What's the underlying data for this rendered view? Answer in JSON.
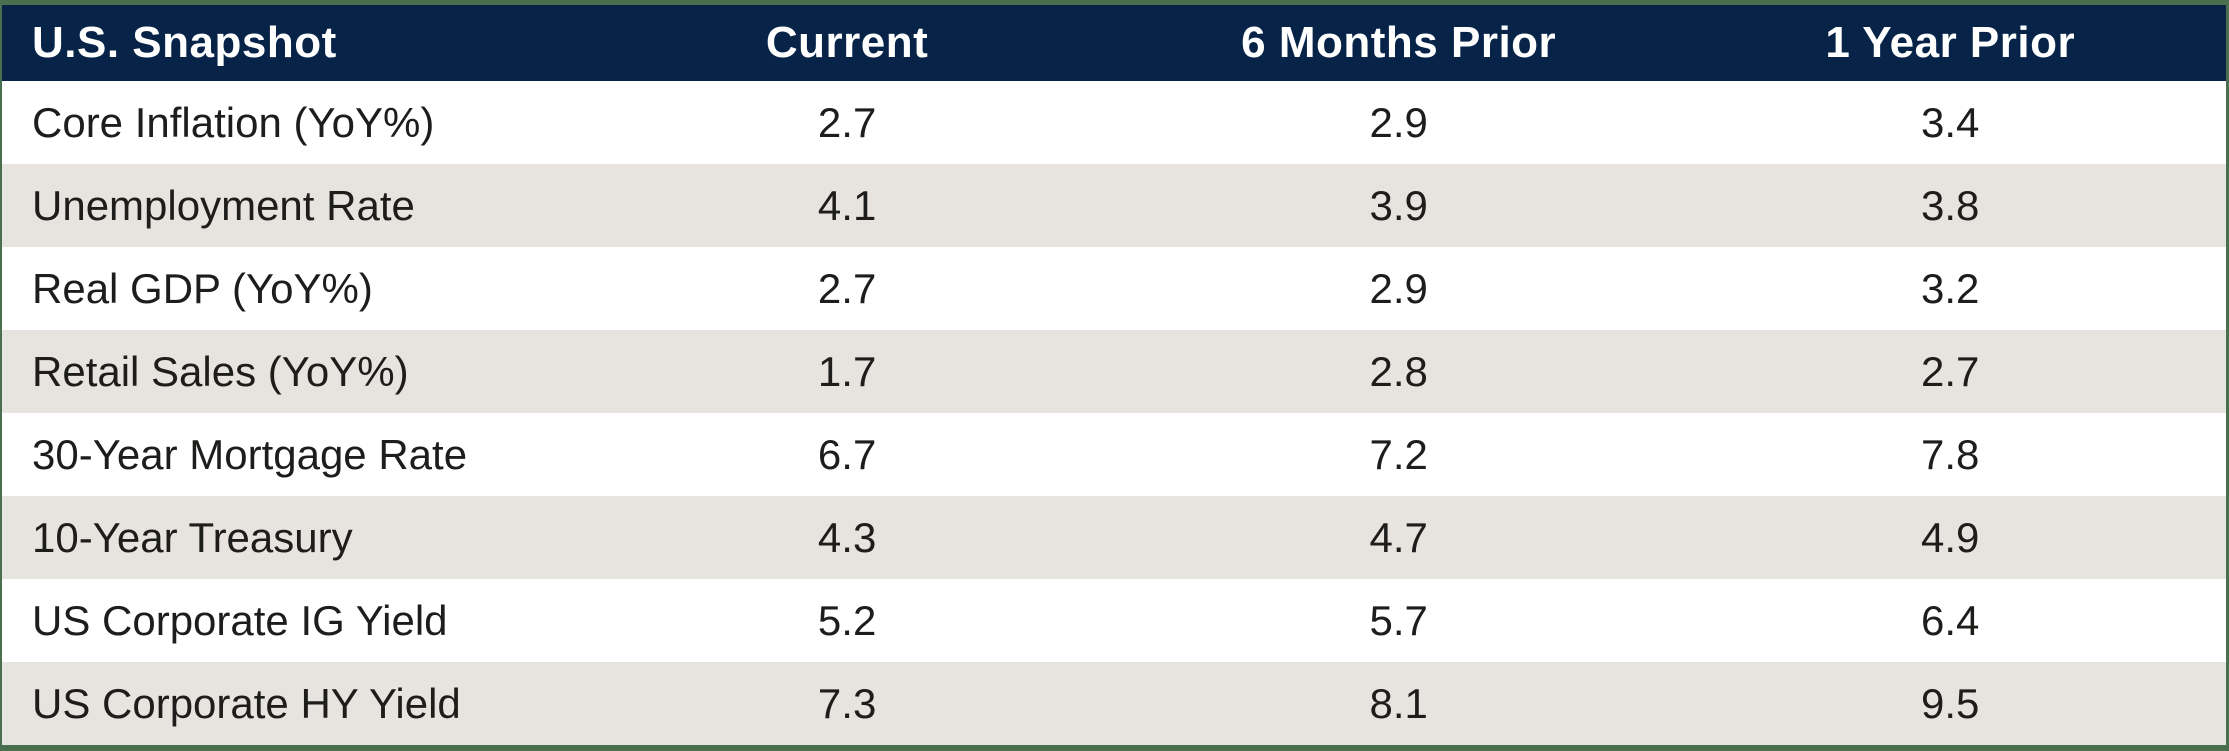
{
  "table": {
    "title": "U.S. Snapshot",
    "columns": [
      "Current",
      "6 Months Prior",
      "1 Year Prior"
    ],
    "rows": [
      {
        "label": "Core Inflation (YoY%)",
        "values": [
          "2.7",
          "2.9",
          "3.4"
        ]
      },
      {
        "label": "Unemployment Rate",
        "values": [
          "4.1",
          "3.9",
          "3.8"
        ]
      },
      {
        "label": "Real GDP (YoY%)",
        "values": [
          "2.7",
          "2.9",
          "3.2"
        ]
      },
      {
        "label": "Retail Sales (YoY%)",
        "values": [
          "1.7",
          "2.8",
          "2.7"
        ]
      },
      {
        "label": "30-Year Mortgage Rate",
        "values": [
          "6.7",
          "7.2",
          "7.8"
        ]
      },
      {
        "label": "10-Year Treasury",
        "values": [
          "4.3",
          "4.7",
          "4.9"
        ]
      },
      {
        "label": "US Corporate IG Yield",
        "values": [
          "5.2",
          "5.7",
          "6.4"
        ]
      },
      {
        "label": "US Corporate HY Yield",
        "values": [
          "7.3",
          "8.1",
          "9.5"
        ]
      }
    ]
  },
  "colors": {
    "header_bg": "#072448",
    "header_text": "#ffffff",
    "border_green": "#48704e",
    "row_bg": "#ffffff",
    "row_alt_bg": "#e7e3de",
    "body_text": "#1d1d1b"
  }
}
